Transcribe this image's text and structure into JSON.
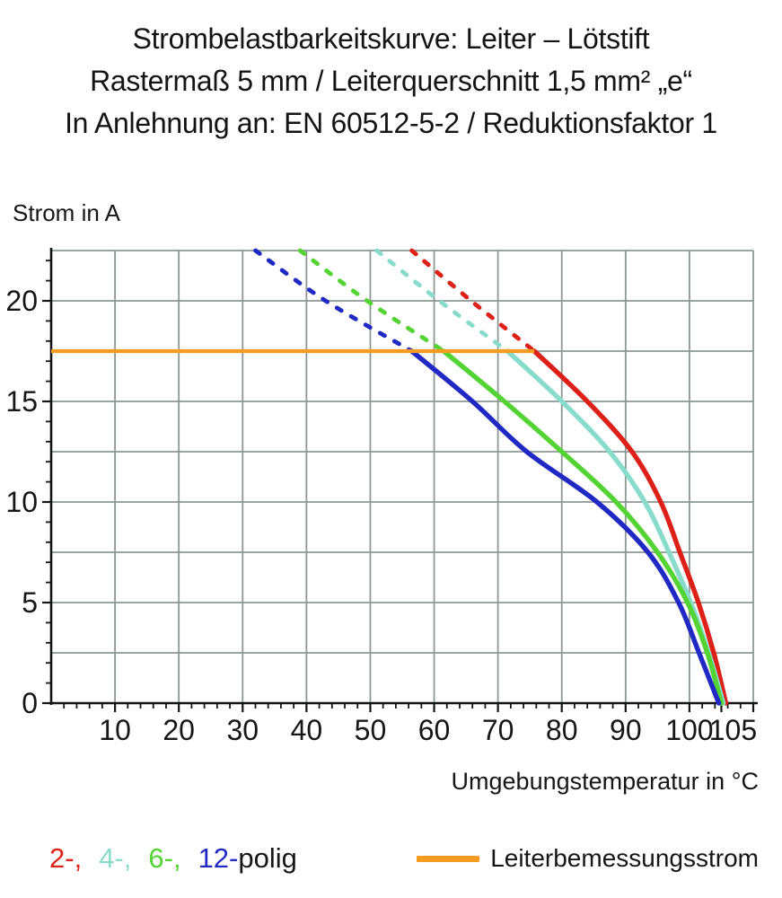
{
  "title": {
    "line1": "Strombelastbarkeitskurve: Leiter – Lötstift",
    "line2": "Rastermaß 5 mm / Leiterquerschnitt 1,5 mm² „e“",
    "line3": "In Anlehnung an: EN 60512-5-2 / Reduktionsfaktor 1"
  },
  "chart_data": {
    "type": "line",
    "title": "Strombelastbarkeitskurve: Leiter – Lötstift / Rastermaß 5 mm / Leiterquerschnitt 1,5 mm² „e“ / In Anlehnung an: EN 60512-5-2 / Reduktionsfaktor 1",
    "ylabel": "Strom in A",
    "xlabel": "Umgebungstemperatur in °C",
    "xlim": [
      0,
      110
    ],
    "ylim": [
      0,
      22.5
    ],
    "grid": {
      "x_step": 10,
      "y_step": 2.5,
      "color": "#8C9793",
      "on": true
    },
    "x_major_ticks": [
      10,
      20,
      30,
      40,
      50,
      60,
      70,
      80,
      90,
      100,
      105
    ],
    "x_minor_tick_step": 2,
    "y_major_ticks": [
      0,
      5,
      10,
      15,
      20
    ],
    "y_minor_tick_step": 1,
    "axis_color": "#141414",
    "legend_position": "bottom",
    "reference_line": {
      "label": "Leiterbemessungsstrom",
      "current_a": 17.5,
      "t_start": 0,
      "t_end": 75.7,
      "color": "#F59B20"
    },
    "series": [
      {
        "name": "2-polig",
        "poles": 2,
        "color": "#DD2018",
        "dashed_points": [
          [
            56.5,
            22.5
          ],
          [
            65.8,
            20
          ],
          [
            75.7,
            17.5
          ]
        ],
        "solid_points": [
          [
            75.7,
            17.5
          ],
          [
            84,
            15
          ],
          [
            91,
            12.5
          ],
          [
            95.5,
            10
          ],
          [
            98.5,
            7.5
          ],
          [
            101.4,
            5
          ],
          [
            103.8,
            2.5
          ],
          [
            105.7,
            0
          ]
        ]
      },
      {
        "name": "4-polig",
        "poles": 4,
        "color": "#89DCCB",
        "dashed_points": [
          [
            51,
            22.5
          ],
          [
            60.8,
            20
          ],
          [
            71.5,
            17.5
          ]
        ],
        "solid_points": [
          [
            71.5,
            17.5
          ],
          [
            80,
            15
          ],
          [
            87.5,
            12.5
          ],
          [
            93,
            10
          ],
          [
            96.8,
            7.5
          ],
          [
            100.2,
            5
          ],
          [
            103,
            2.5
          ],
          [
            105.3,
            0
          ]
        ]
      },
      {
        "name": "6-polig",
        "poles": 6,
        "color": "#54D434",
        "dashed_points": [
          [
            39,
            22.5
          ],
          [
            49.5,
            20
          ],
          [
            61.5,
            17.5
          ]
        ],
        "solid_points": [
          [
            61.5,
            17.5
          ],
          [
            71,
            15
          ],
          [
            80,
            12.5
          ],
          [
            88.5,
            10
          ],
          [
            95,
            7.5
          ],
          [
            99.7,
            5
          ],
          [
            102.8,
            2.5
          ],
          [
            105,
            0
          ]
        ]
      },
      {
        "name": "12-polig",
        "poles": 12,
        "color": "#2029C3",
        "dashed_points": [
          [
            32,
            22.5
          ],
          [
            43,
            20
          ],
          [
            56.5,
            17.5
          ]
        ],
        "solid_points": [
          [
            56.5,
            17.5
          ],
          [
            66,
            15
          ],
          [
            74.5,
            12.5
          ],
          [
            85.5,
            10
          ],
          [
            93.5,
            7.5
          ],
          [
            98.3,
            5
          ],
          [
            101.5,
            2.5
          ],
          [
            104.6,
            0
          ]
        ]
      }
    ]
  },
  "legend": {
    "pole_items": [
      {
        "label": "2-,",
        "color": "#DD2018"
      },
      {
        "label": "4-,",
        "color": "#89DCCB"
      },
      {
        "label": "6-,",
        "color": "#54D434"
      },
      {
        "label": "12-",
        "color": "#2029C3"
      }
    ],
    "suffix": "polig",
    "reference": {
      "label": "Leiterbemessungsstrom",
      "color": "#F59B20"
    }
  }
}
